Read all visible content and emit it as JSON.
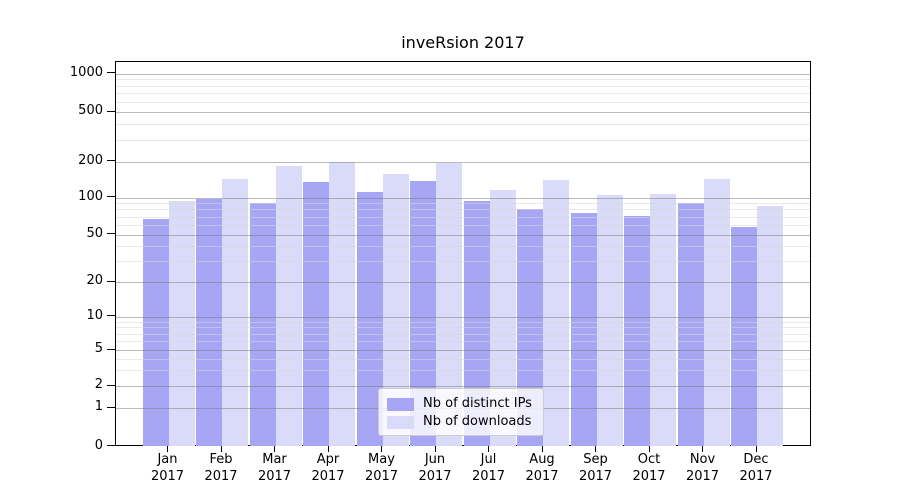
{
  "title": "inveRsion 2017",
  "legend": {
    "items": [
      {
        "label": "Nb of distinct IPs",
        "color": "#a6a6f5"
      },
      {
        "label": "Nb of downloads",
        "color": "#dadaf9"
      }
    ]
  },
  "chart_data": {
    "type": "bar",
    "title": "inveRsion 2017",
    "categories": [
      "Jan",
      "Feb",
      "Mar",
      "Apr",
      "May",
      "Jun",
      "Jul",
      "Aug",
      "Sep",
      "Oct",
      "Nov",
      "Dec"
    ],
    "category_year_line": "2017",
    "series": [
      {
        "name": "Nb of distinct IPs",
        "color": "#a6a6f5",
        "values": [
          67,
          97,
          91,
          135,
          112,
          137,
          93,
          81,
          75,
          71,
          91,
          58
        ]
      },
      {
        "name": "Nb of downloads",
        "color": "#dadaf9",
        "values": [
          94,
          143,
          183,
          197,
          158,
          194,
          116,
          140,
          105,
          108,
          143,
          86
        ]
      }
    ],
    "xlabel": "",
    "ylabel": "",
    "yscale": "symlog-like",
    "y_ticks": [
      0,
      1,
      2,
      5,
      10,
      20,
      50,
      100,
      200,
      500,
      1000
    ],
    "y_minor_gridlines": [
      3,
      4,
      6,
      7,
      8,
      9,
      30,
      40,
      60,
      70,
      80,
      90,
      300,
      400,
      600,
      700,
      800,
      900
    ],
    "ylim": [
      0,
      1200
    ],
    "grid": "on",
    "legend_position": "lower center"
  }
}
